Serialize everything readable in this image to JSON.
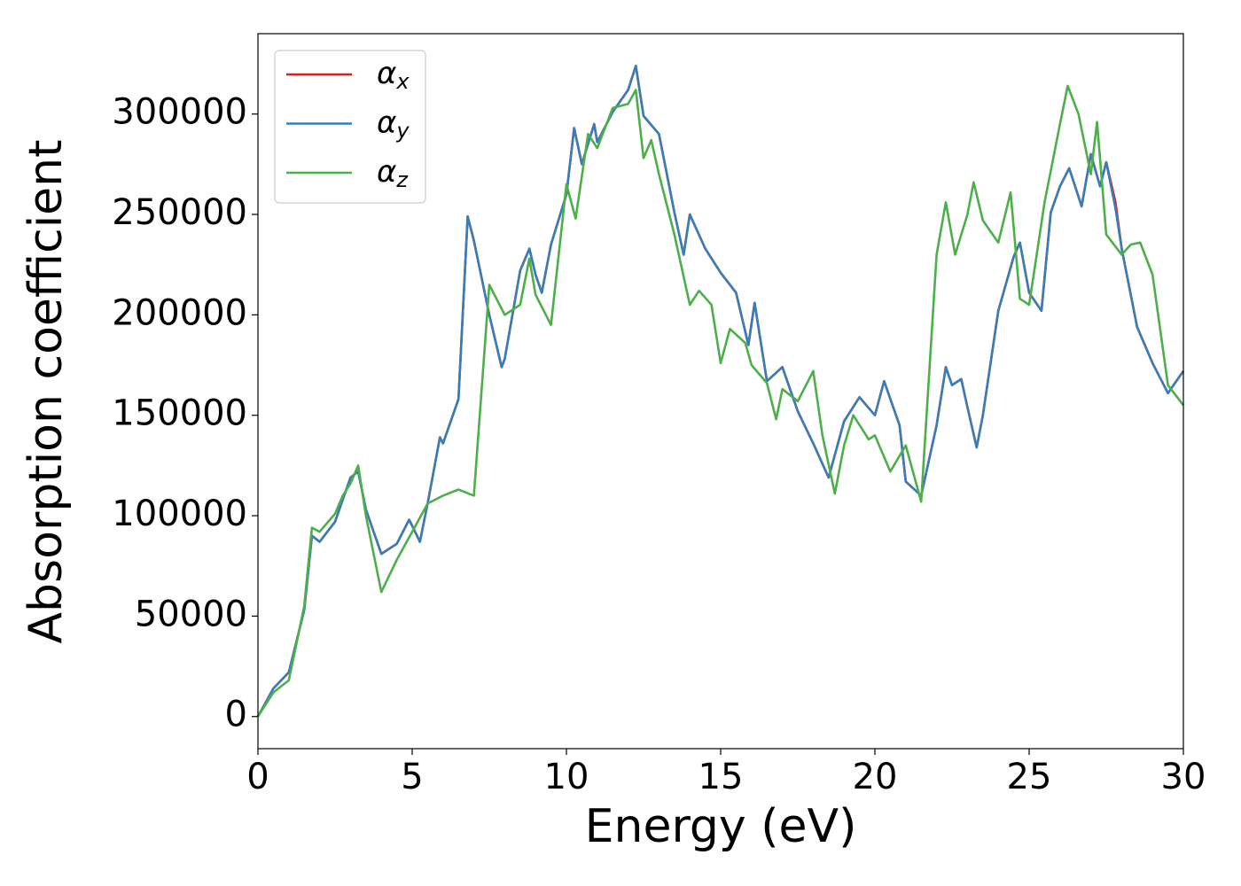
{
  "chart_data": {
    "type": "line",
    "xlabel": "Energy (eV)",
    "ylabel": "Absorption coefficient",
    "xlim": [
      0,
      30
    ],
    "xticks": [
      0,
      5,
      10,
      15,
      20,
      25,
      30
    ],
    "ylim": [
      -16000,
      340000
    ],
    "yticks": [
      0,
      50000,
      100000,
      150000,
      200000,
      250000,
      300000
    ],
    "legend": "upper left",
    "series": [
      {
        "name": "αx",
        "color": "#e41a1c",
        "x": [
          0,
          0.5,
          1,
          1.5,
          1.75,
          2,
          2.5,
          3,
          3.25,
          3.5,
          4,
          4.5,
          4.9,
          5,
          5.25,
          5.5,
          5.9,
          6,
          6.5,
          6.8,
          7,
          7.5,
          7.9,
          8,
          8.5,
          8.8,
          9,
          9.2,
          9.5,
          10,
          10.25,
          10.5,
          10.9,
          11,
          11.5,
          12,
          12.25,
          12.5,
          13,
          13.5,
          13.8,
          14,
          14.5,
          15,
          15.5,
          15.9,
          16.1,
          16.5,
          17,
          17.5,
          18,
          18.5,
          19,
          19.5,
          20,
          20.3,
          20.8,
          21,
          21.5,
          22,
          22.3,
          22.5,
          22.8,
          23,
          23.3,
          23.5,
          24,
          24.5,
          24.7,
          25,
          25.4,
          25.7,
          26,
          26.3,
          26.7,
          27,
          27.3,
          27.5,
          27.8,
          28,
          28.5,
          29,
          29.5,
          30
        ],
        "values": [
          0,
          14000,
          22000,
          53000,
          90000,
          87000,
          97000,
          119000,
          122000,
          103000,
          81000,
          86000,
          98000,
          95000,
          87000,
          106000,
          139000,
          136000,
          158000,
          249000,
          237000,
          200000,
          174000,
          178000,
          222000,
          233000,
          220000,
          211000,
          235000,
          260000,
          293000,
          275000,
          295000,
          286000,
          301000,
          312000,
          324000,
          299000,
          290000,
          251000,
          230000,
          250000,
          233000,
          221000,
          211000,
          185000,
          206000,
          167000,
          174000,
          152000,
          136000,
          119000,
          147000,
          159000,
          150000,
          167000,
          145000,
          117000,
          110000,
          145000,
          174000,
          165000,
          168000,
          154000,
          134000,
          150000,
          202000,
          229000,
          236000,
          211000,
          202000,
          251000,
          264000,
          273000,
          254000,
          280000,
          264000,
          276000,
          256000,
          233000,
          194000,
          176000,
          161000,
          172000
        ]
      },
      {
        "name": "αy",
        "color": "#377eb8",
        "x": [
          0,
          0.5,
          1,
          1.5,
          1.75,
          2,
          2.5,
          3,
          3.25,
          3.5,
          4,
          4.5,
          4.9,
          5,
          5.25,
          5.5,
          5.9,
          6,
          6.5,
          6.8,
          7,
          7.5,
          7.9,
          8,
          8.5,
          8.8,
          9,
          9.2,
          9.5,
          10,
          10.25,
          10.5,
          10.9,
          11,
          11.5,
          12,
          12.25,
          12.5,
          13,
          13.5,
          13.8,
          14,
          14.5,
          15,
          15.5,
          15.9,
          16.1,
          16.5,
          17,
          17.5,
          18,
          18.5,
          19,
          19.5,
          20,
          20.3,
          20.8,
          21,
          21.5,
          22,
          22.3,
          22.5,
          22.8,
          23,
          23.3,
          23.5,
          24,
          24.5,
          24.7,
          25,
          25.4,
          25.7,
          26,
          26.3,
          26.7,
          27,
          27.3,
          27.5,
          27.8,
          28,
          28.5,
          29,
          29.5,
          30
        ],
        "values": [
          0,
          14000,
          22000,
          53000,
          90000,
          87000,
          97000,
          119000,
          122000,
          103000,
          81000,
          86000,
          98000,
          95000,
          87000,
          106000,
          139000,
          136000,
          158000,
          249000,
          237000,
          200000,
          174000,
          178000,
          222000,
          233000,
          220000,
          211000,
          235000,
          260000,
          293000,
          275000,
          295000,
          286000,
          301000,
          312000,
          324000,
          299000,
          290000,
          251000,
          230000,
          250000,
          233000,
          221000,
          211000,
          185000,
          206000,
          167000,
          174000,
          152000,
          136000,
          119000,
          147000,
          159000,
          150000,
          167000,
          145000,
          117000,
          110000,
          145000,
          174000,
          165000,
          168000,
          154000,
          134000,
          150000,
          202000,
          229000,
          236000,
          211000,
          202000,
          251000,
          264000,
          273000,
          254000,
          280000,
          264000,
          276000,
          253000,
          233000,
          194000,
          176000,
          161000,
          172000
        ]
      },
      {
        "name": "αz",
        "color": "#4daf4a",
        "x": [
          0,
          0.5,
          1,
          1.5,
          1.75,
          2,
          2.5,
          2.75,
          3,
          3.25,
          3.5,
          4,
          4.5,
          5,
          5.5,
          6,
          6.5,
          7,
          7.5,
          8,
          8.5,
          8.8,
          9,
          9.5,
          10,
          10.3,
          10.7,
          11,
          11.5,
          12,
          12.25,
          12.5,
          12.75,
          13,
          13.5,
          14,
          14.3,
          14.7,
          15,
          15.3,
          15.8,
          16,
          16.5,
          16.8,
          17,
          17.5,
          18,
          18.3,
          18.7,
          19,
          19.3,
          19.8,
          20,
          20.5,
          21,
          21.5,
          22,
          22.3,
          22.6,
          23,
          23.2,
          23.5,
          24,
          24.4,
          24.7,
          25,
          25.5,
          26,
          26.25,
          26.6,
          27,
          27.2,
          27.5,
          28,
          28.3,
          28.6,
          29,
          29.5,
          30
        ],
        "values": [
          0,
          12000,
          18000,
          55000,
          94000,
          92000,
          101000,
          110000,
          116000,
          125000,
          100000,
          62000,
          78000,
          92000,
          106000,
          110000,
          113000,
          110000,
          215000,
          200000,
          205000,
          228000,
          210000,
          195000,
          265000,
          248000,
          290000,
          283000,
          303000,
          305000,
          312000,
          278000,
          287000,
          270000,
          240000,
          205000,
          212000,
          205000,
          176000,
          193000,
          186000,
          175000,
          166000,
          148000,
          163000,
          157000,
          172000,
          140000,
          111000,
          135000,
          150000,
          138000,
          140000,
          122000,
          135000,
          107000,
          230000,
          256000,
          230000,
          250000,
          266000,
          247000,
          236000,
          261000,
          208000,
          205000,
          256000,
          295000,
          314000,
          300000,
          270000,
          296000,
          240000,
          230000,
          235000,
          236000,
          220000,
          165000,
          155000
        ]
      }
    ]
  }
}
